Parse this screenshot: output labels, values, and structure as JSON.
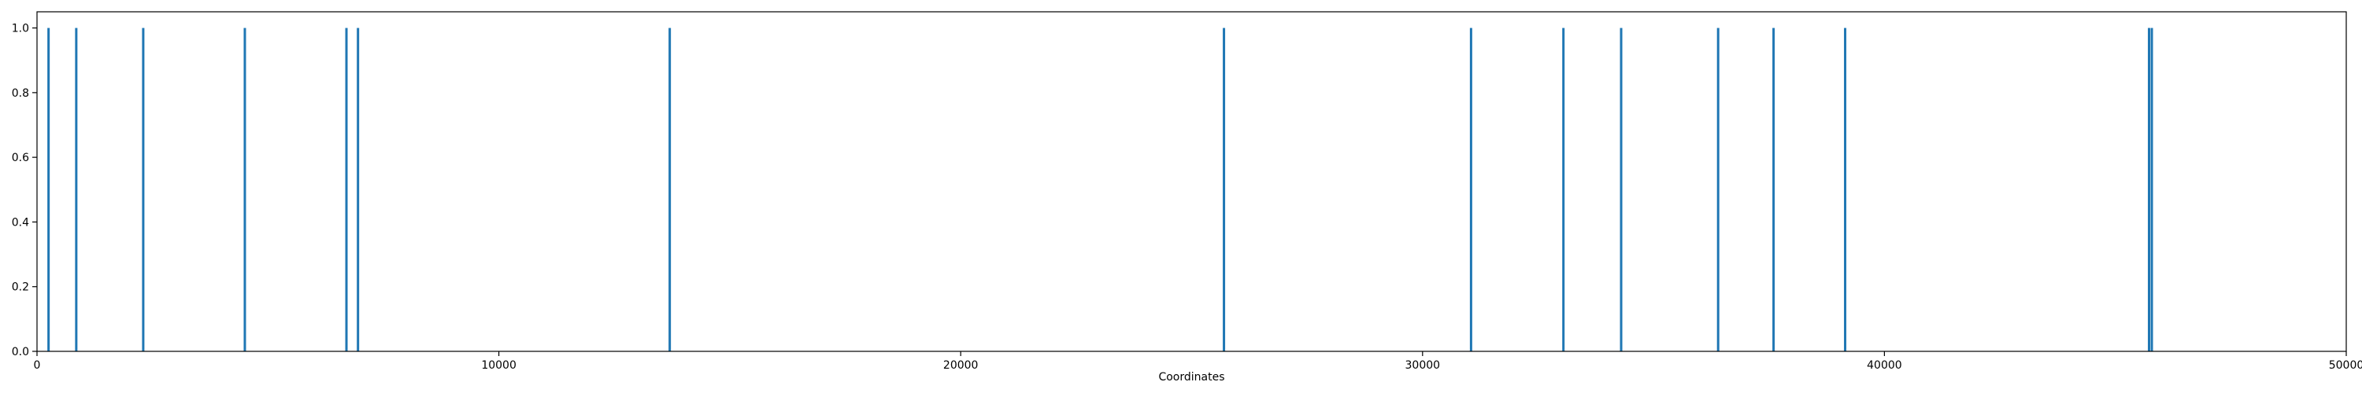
{
  "chart_data": {
    "type": "bar",
    "xlabel": "Coordinates",
    "ylabel": "",
    "title": "",
    "xlim": [
      0,
      50000
    ],
    "ylim": [
      0.0,
      1.05
    ],
    "xticks": [
      0,
      10000,
      20000,
      30000,
      40000,
      50000
    ],
    "xtick_labels": [
      "0",
      "10000",
      "20000",
      "30000",
      "40000",
      "50000"
    ],
    "yticks": [
      0.0,
      0.2,
      0.4,
      0.6,
      0.8,
      1.0
    ],
    "ytick_labels": [
      "0.0",
      "0.2",
      "0.4",
      "0.6",
      "0.8",
      "1.0"
    ],
    "grid": false,
    "bar_color": "#1f77b4",
    "x": [
      250,
      850,
      2300,
      4500,
      6700,
      6950,
      13700,
      25700,
      31050,
      33050,
      34300,
      36400,
      37600,
      39150,
      45730,
      45790
    ],
    "values": [
      1,
      1,
      1,
      1,
      1,
      1,
      1,
      1,
      1,
      1,
      1,
      1,
      1,
      1,
      1,
      1
    ]
  }
}
